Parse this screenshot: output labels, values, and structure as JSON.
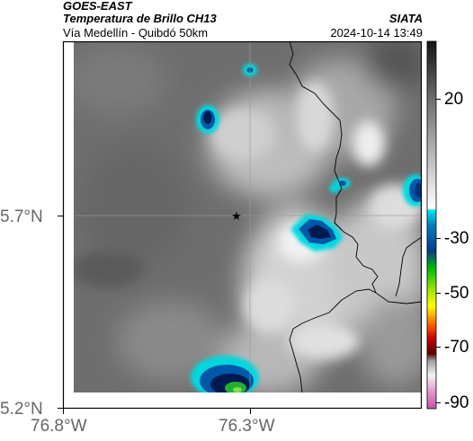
{
  "header": {
    "satellite": "GOES-EAST",
    "product": "Temperatura de Brillo CH13",
    "provider": "SIATA",
    "region": "Vía Medellín - Quibdó 50km",
    "timestamp": "2024-10-14 13:49"
  },
  "map": {
    "lat_labels": [
      "5.7°N",
      "5.2°N"
    ],
    "lon_labels": [
      "76.8°W",
      "76.3°W"
    ],
    "marker_icon": "star-icon"
  },
  "colorbar": {
    "labels": [
      "20",
      "-30",
      "-50",
      "-70",
      "-90"
    ],
    "colors": {
      "cloud_cyan": "#00d8e0",
      "cloud_blue": "#0058a8",
      "cloud_navy": "#001a50",
      "cloud_green": "#22b030",
      "warm_gray": "#6e6e6e",
      "magenta": "#c0409e"
    }
  }
}
